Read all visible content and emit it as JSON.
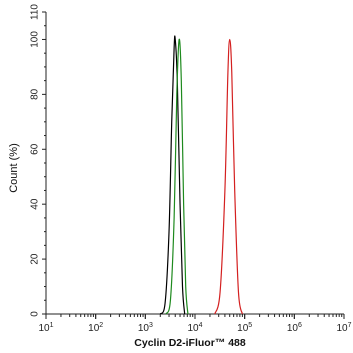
{
  "chart_data": {
    "type": "line",
    "title": "",
    "xlabel": "Cyclin D2-iFluor™ 488",
    "ylabel": "Count  (%)",
    "x_scale": "log",
    "xlim": [
      10,
      10000000
    ],
    "ylim": [
      0,
      110
    ],
    "x_ticks": [
      {
        "value": 10,
        "base": "10",
        "exp": "1"
      },
      {
        "value": 100,
        "base": "10",
        "exp": "2"
      },
      {
        "value": 1000,
        "base": "10",
        "exp": "3"
      },
      {
        "value": 10000,
        "base": "10",
        "exp": "4"
      },
      {
        "value": 100000,
        "base": "10",
        "exp": "5"
      },
      {
        "value": 1000000,
        "base": "10",
        "exp": "6"
      },
      {
        "value": 10000000,
        "base": "10",
        "exp": "7"
      }
    ],
    "y_ticks": [
      "0",
      "20",
      "40",
      "60",
      "80",
      "100",
      "110"
    ],
    "grid": false,
    "series": [
      {
        "color": "#000000",
        "peak_x": 4000,
        "peak_y": 100,
        "x": [
          2000,
          2500,
          3000,
          3400,
          3800,
          4000,
          4400,
          5000,
          5600,
          6200
        ],
        "y": [
          0,
          4,
          30,
          70,
          97,
          100,
          85,
          40,
          10,
          0
        ]
      },
      {
        "color": "#1e8a1e",
        "peak_x": 4800,
        "peak_y": 100,
        "x": [
          2600,
          3200,
          3800,
          4300,
          4800,
          5300,
          5900,
          6500,
          7200
        ],
        "y": [
          0,
          5,
          35,
          80,
          100,
          85,
          40,
          10,
          0
        ]
      },
      {
        "color": "#d42020",
        "peak_x": 50000,
        "peak_y": 100,
        "x": [
          25000,
          32000,
          40000,
          46000,
          50000,
          55000,
          63000,
          75000,
          90000
        ],
        "y": [
          0,
          8,
          45,
          88,
          100,
          88,
          45,
          8,
          0
        ]
      }
    ]
  }
}
